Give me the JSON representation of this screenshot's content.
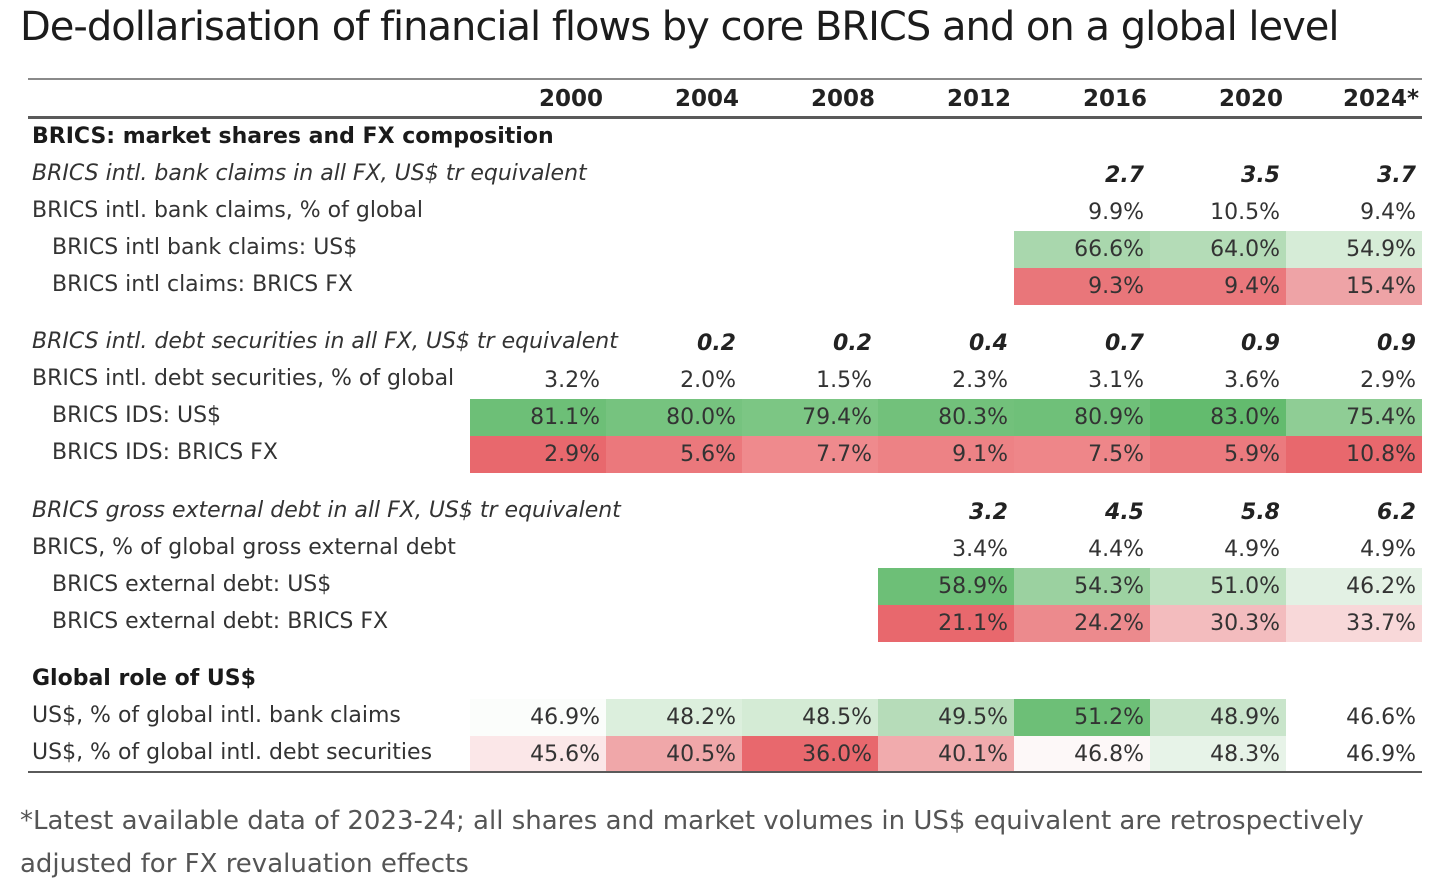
{
  "title": "De-dollarisation of financial flows by core BRICS and on a global level",
  "years": [
    "2000",
    "2004",
    "2008",
    "2012",
    "2016",
    "2020",
    "2024*"
  ],
  "rows": [
    {
      "label": "BRICS: market shares and FX composition",
      "style": "section",
      "cells": [
        "",
        "",
        "",
        "",
        "",
        "",
        ""
      ]
    },
    {
      "label": "BRICS intl. bank claims in all FX, US$ tr equivalent",
      "style": "italic",
      "cells": [
        "",
        "",
        "",
        "",
        "2.7",
        "3.5",
        "3.7"
      ]
    },
    {
      "label": "BRICS intl. bank claims, % of global",
      "style": "plain",
      "cells": [
        "",
        "",
        "",
        "",
        "9.9%",
        "10.5%",
        "9.4%"
      ]
    },
    {
      "label": "BRICS intl bank claims: US$",
      "style": "indent",
      "cells": [
        "",
        "",
        "",
        "",
        "66.6%",
        "64.0%",
        "54.9%"
      ],
      "colors": [
        "",
        "",
        "",
        "",
        "#a9d7ad",
        "#b4dcb7",
        "#d6ecd7"
      ]
    },
    {
      "label": "BRICS intl claims: BRICS FX",
      "style": "indent",
      "cells": [
        "",
        "",
        "",
        "",
        "9.3%",
        "9.4%",
        "15.4%"
      ],
      "colors": [
        "",
        "",
        "",
        "",
        "#e9767a",
        "#ea787c",
        "#eea3a6"
      ]
    },
    {
      "label": "BRICS intl. debt securities in all FX, US$ tr equivalent",
      "style": "italic",
      "cells": [
        "",
        "0.2",
        "0.2",
        "0.4",
        "0.7",
        "0.9",
        "0.9"
      ]
    },
    {
      "label": "BRICS intl. debt securities, % of global",
      "style": "plain",
      "cells": [
        "3.2%",
        "2.0%",
        "1.5%",
        "2.3%",
        "3.1%",
        "3.6%",
        "2.9%"
      ]
    },
    {
      "label": "BRICS IDS: US$",
      "style": "indent",
      "cells": [
        "81.1%",
        "80.0%",
        "79.4%",
        "80.3%",
        "80.9%",
        "83.0%",
        "75.4%"
      ],
      "colors": [
        "#6dbf77",
        "#76c37f",
        "#7cc684",
        "#72c17b",
        "#6fc079",
        "#63bb6e",
        "#8fcd95"
      ]
    },
    {
      "label": "BRICS IDS: BRICS FX",
      "style": "indent",
      "cells": [
        "2.9%",
        "5.6%",
        "7.7%",
        "9.1%",
        "7.5%",
        "5.9%",
        "10.8%"
      ],
      "colors": [
        "#e8686d",
        "#eb787c",
        "#ef8a8d",
        "#ed8285",
        "#ee8689",
        "#eb7a7e",
        "#e8686d"
      ]
    },
    {
      "label": "BRICS gross external debt in all FX, US$ tr equivalent",
      "style": "italic",
      "cells": [
        "",
        "",
        "",
        "3.2",
        "4.5",
        "5.8",
        "6.2"
      ]
    },
    {
      "label": "BRICS, % of global gross external debt",
      "style": "plain",
      "cells": [
        "",
        "",
        "",
        "3.4%",
        "4.4%",
        "4.9%",
        "4.9%"
      ]
    },
    {
      "label": "BRICS external debt: US$",
      "style": "indent",
      "cells": [
        "",
        "",
        "",
        "58.9%",
        "54.3%",
        "51.0%",
        "46.2%"
      ],
      "colors": [
        "",
        "",
        "",
        "#6dbf77",
        "#9bd1a0",
        "#bfe1c1",
        "#e3f1e4"
      ]
    },
    {
      "label": "BRICS external debt: BRICS FX",
      "style": "indent",
      "cells": [
        "",
        "",
        "",
        "21.1%",
        "24.2%",
        "30.3%",
        "33.7%"
      ],
      "colors": [
        "",
        "",
        "",
        "#e8686d",
        "#ec8a8d",
        "#f3bcbe",
        "#f8d8d9"
      ]
    },
    {
      "label": "Global role of US$",
      "style": "section",
      "cells": [
        "",
        "",
        "",
        "",
        "",
        "",
        ""
      ]
    },
    {
      "label": "US$, % of global intl. bank claims",
      "style": "plain",
      "cells": [
        "46.9%",
        "48.2%",
        "48.5%",
        "49.5%",
        "51.2%",
        "48.9%",
        "46.6%"
      ],
      "colors": [
        "#fbfdfb",
        "#dcefdd",
        "#d4ebd5",
        "#b6dcb9",
        "#6dbf77",
        "#c9e5cb",
        "#ffffff"
      ]
    },
    {
      "label": "US$, % of global intl. debt securities",
      "style": "plain",
      "cells": [
        "45.6%",
        "40.5%",
        "36.0%",
        "40.1%",
        "46.8%",
        "48.3%",
        "46.9%"
      ],
      "colors": [
        "#fbe7e8",
        "#f0a7a9",
        "#e8686d",
        "#f1abad",
        "#fdf8f8",
        "#e7f3e8",
        "#ffffff"
      ]
    }
  ],
  "footnote": "*Latest available data of 2023-24; all shares and market volumes in US$ equivalent are retrospectively adjusted for FX revaluation effects"
}
